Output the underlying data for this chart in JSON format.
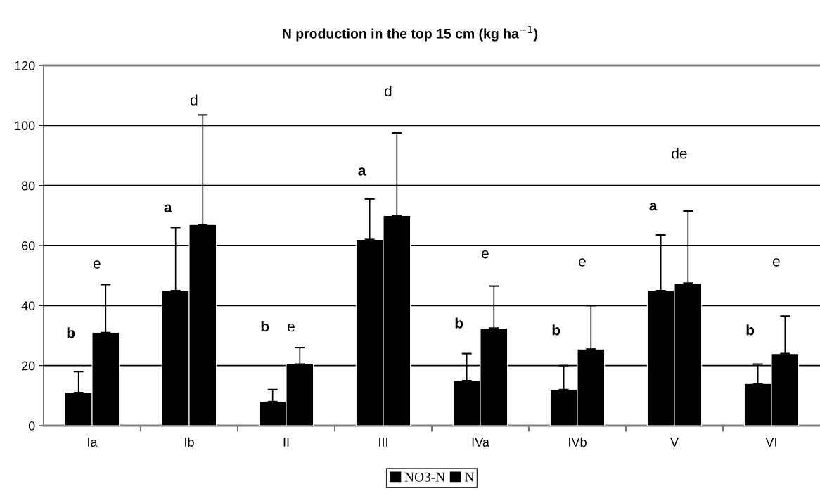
{
  "chart_data": {
    "type": "bar",
    "title": "N production in the top 15 cm (kg ha$^{−1}$)",
    "categories": [
      "Ia",
      "Ib",
      "II",
      "III",
      "IVa",
      "IVb",
      "V",
      "VI"
    ],
    "series": [
      {
        "name": "NO3-N",
        "color": "#000000",
        "values": [
          11,
          45,
          8,
          62,
          15,
          12,
          45,
          14
        ],
        "errors": [
          [
            11,
            18
          ],
          [
            45,
            66
          ],
          [
            8,
            12
          ],
          [
            62,
            75.5
          ],
          [
            15,
            24
          ],
          [
            12,
            20
          ],
          [
            45,
            63.5
          ],
          [
            14,
            20.5
          ]
        ]
      },
      {
        "name": "N",
        "color": "#000000",
        "values": [
          31,
          67,
          20.5,
          70,
          32.5,
          25.5,
          47.5,
          24
        ],
        "errors": [
          [
            31,
            47
          ],
          [
            67,
            103.5
          ],
          [
            20.5,
            26
          ],
          [
            70,
            97.5
          ],
          [
            32.5,
            46.5
          ],
          [
            25.5,
            40
          ],
          [
            47.5,
            71.5
          ],
          [
            24,
            36.5
          ]
        ]
      }
    ],
    "ylim": [
      0,
      120
    ],
    "yticks": [
      0,
      20,
      40,
      60,
      80,
      100,
      120
    ],
    "grid": "y",
    "legend": "bottom",
    "annotations": [
      "b",
      "e",
      "a",
      "d",
      "b",
      "e",
      "a",
      "d",
      "b",
      "e",
      "b",
      "e",
      "a",
      "de",
      "b",
      "e"
    ]
  }
}
